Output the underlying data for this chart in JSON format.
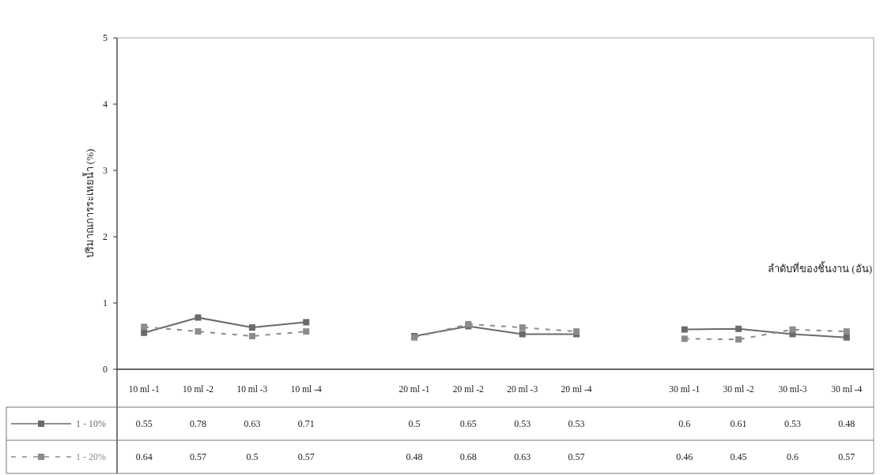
{
  "chart_data": {
    "type": "line",
    "ylabel": "ปริมาณการระเหยน้ำ (%)",
    "xlabel": "ลำดับที่ของชิ้นงาน (อัน)",
    "categories": [
      "10 ml -1",
      "10 ml -2",
      "10 ml -3",
      "10 ml -4",
      null,
      "20 ml -1",
      "20 ml -2",
      "20 ml -3",
      "20 ml -4",
      null,
      "30 ml -1",
      "30 ml -2",
      "30 ml-3",
      "30 ml -4"
    ],
    "series": [
      {
        "name": "1 - 10%",
        "color": "#6a6a6a",
        "line_style": "solid",
        "values": [
          0.55,
          0.78,
          0.63,
          0.71,
          null,
          0.5,
          0.65,
          0.53,
          0.53,
          null,
          0.6,
          0.61,
          0.53,
          0.48
        ]
      },
      {
        "name": "1 - 20%",
        "color": "#8c8c8c",
        "line_style": "dashed",
        "values": [
          0.64,
          0.57,
          0.5,
          0.57,
          null,
          0.48,
          0.68,
          0.63,
          0.57,
          null,
          0.46,
          0.45,
          0.6,
          0.57
        ]
      }
    ],
    "ylim": [
      0,
      5
    ],
    "yticks": [
      0,
      1,
      2,
      3,
      4,
      5
    ],
    "marker": "square",
    "data_labels": true,
    "legend": "bottom"
  }
}
